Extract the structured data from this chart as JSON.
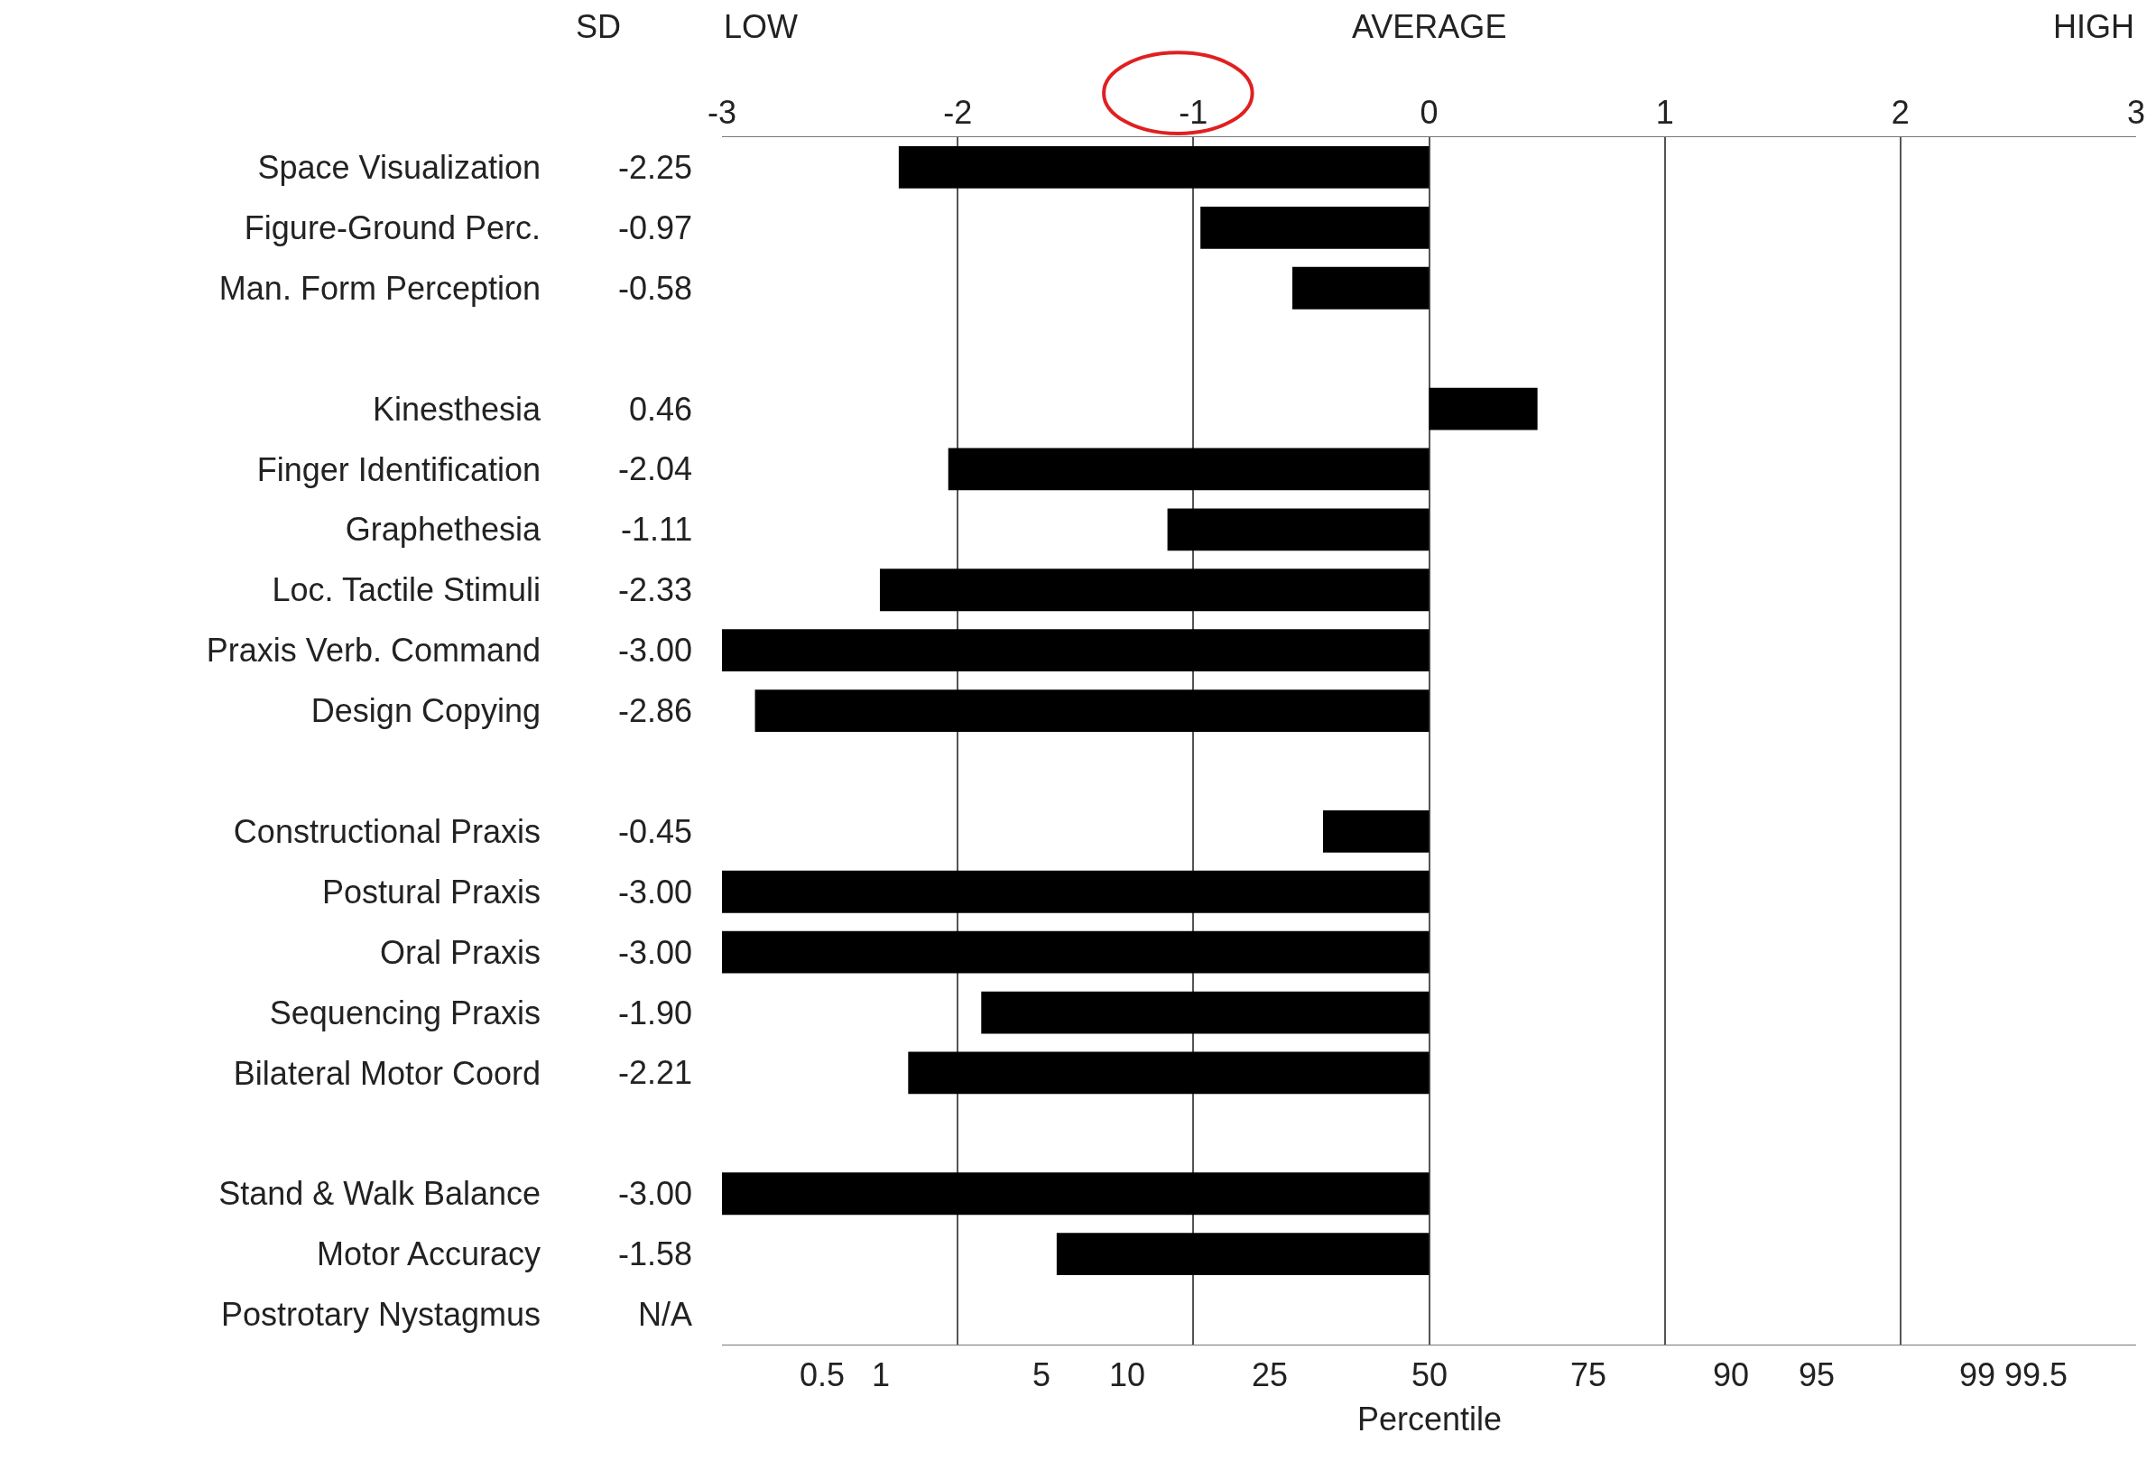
{
  "chart_data": {
    "type": "bar",
    "orientation": "horizontal",
    "xlabel": "Percentile",
    "annotations": [
      "SD",
      "LOW",
      "AVERAGE",
      "HIGH",
      "0.5",
      "1",
      "5",
      "10",
      "25",
      "50",
      "75",
      "90",
      "95",
      "99",
      "99.5"
    ],
    "categories": [
      "Space Visualization",
      "Figure-Ground Perc.",
      "Man. Form Perception",
      null,
      "Kinesthesia",
      "Finger Identification",
      "Graphethesia",
      "Loc. Tactile Stimuli",
      "Praxis Verb. Command",
      "Design Copying",
      null,
      "Constructional Praxis",
      "Postural Praxis",
      "Oral Praxis",
      "Sequencing Praxis",
      "Bilateral Motor Coord",
      null,
      "Stand & Walk Balance",
      "Motor Accuracy",
      "Postrotary Nystagmus"
    ],
    "values": [
      -2.25,
      -0.97,
      -0.58,
      null,
      0.46,
      -2.04,
      -1.11,
      -2.33,
      -3.0,
      -2.86,
      null,
      -0.45,
      -3.0,
      -3.0,
      -1.9,
      -2.21,
      null,
      -3.0,
      -1.58,
      null
    ],
    "value_labels": [
      "-2.25",
      "-0.97",
      "-0.58",
      null,
      "0.46",
      "-2.04",
      "-1.11",
      "-2.33",
      "-3.00",
      "-2.86",
      null,
      "-0.45",
      "-3.00",
      "-3.00",
      "-1.90",
      "-2.21",
      null,
      "-3.00",
      "-1.58",
      "N/A"
    ],
    "color": "#000000",
    "xlim": [
      -3,
      3
    ],
    "xticks": [
      -3,
      -2,
      -1,
      0,
      1,
      2,
      3
    ],
    "grid": "x",
    "legend": false
  }
}
